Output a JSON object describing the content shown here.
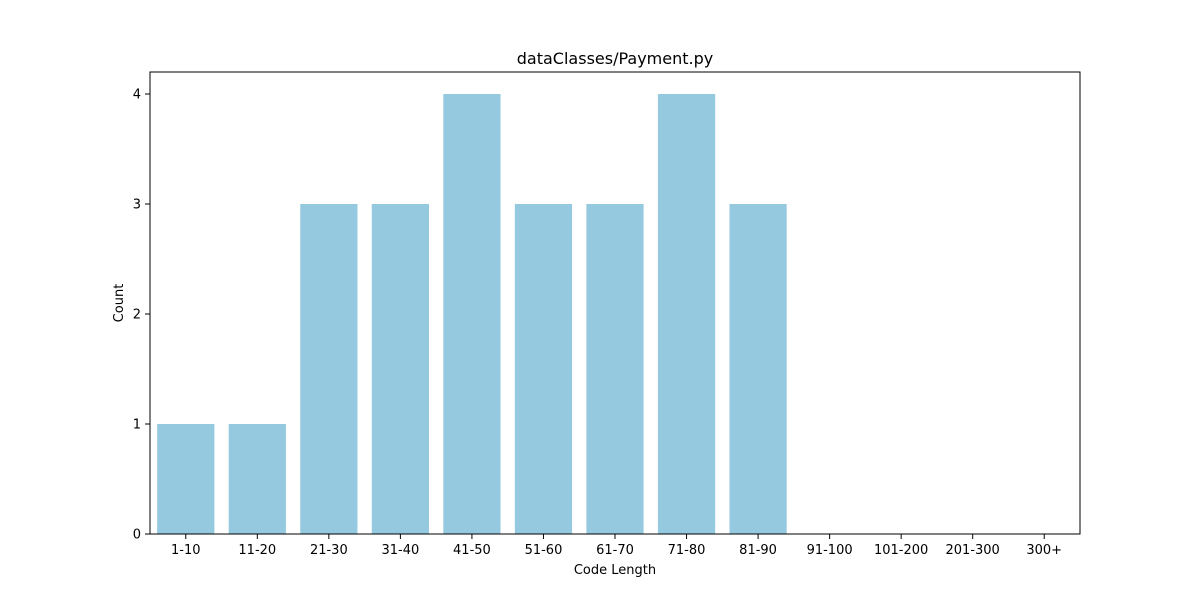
{
  "chart_data": {
    "type": "bar",
    "title": "dataClasses/Payment.py",
    "xlabel": "Code Length",
    "ylabel": "Count",
    "categories": [
      "1-10",
      "11-20",
      "21-30",
      "31-40",
      "41-50",
      "51-60",
      "61-70",
      "71-80",
      "81-90",
      "91-100",
      "101-200",
      "201-300",
      "300+"
    ],
    "values": [
      1,
      1,
      3,
      3,
      4,
      3,
      3,
      4,
      3,
      0,
      0,
      0,
      0
    ],
    "ylim": [
      0,
      4.2
    ],
    "yticks": [
      0,
      1,
      2,
      3,
      4
    ],
    "bar_color": "#95c9df",
    "grid": false,
    "legend": "none"
  }
}
